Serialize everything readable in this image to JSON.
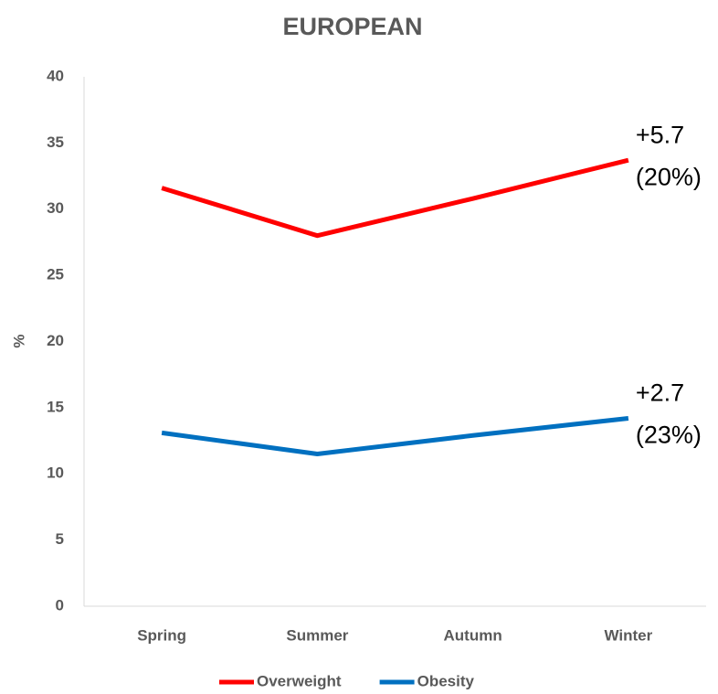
{
  "chart_data": {
    "type": "line",
    "title": "EUROPEAN",
    "y_label": "%",
    "categories": [
      "Spring",
      "Summer",
      "Autumn",
      "Winter"
    ],
    "series": [
      {
        "name": "Overweight",
        "color": "#ff0000",
        "values": [
          31.6,
          28.0,
          30.8,
          33.7
        ]
      },
      {
        "name": "Obesity",
        "color": "#0070c0",
        "values": [
          13.1,
          11.5,
          12.9,
          14.2
        ]
      }
    ],
    "ylim": [
      0,
      40
    ],
    "yticks": [
      0,
      5,
      10,
      15,
      20,
      25,
      30,
      35,
      40
    ],
    "grid": false,
    "legend": "bottom",
    "annotations": [
      {
        "series": 0,
        "lines": [
          "+5.7",
          "(20%)"
        ]
      },
      {
        "series": 1,
        "lines": [
          "+2.7",
          "(23%)"
        ]
      }
    ]
  }
}
